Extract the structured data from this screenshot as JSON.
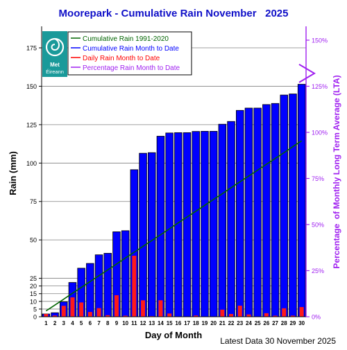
{
  "title": "Moorepark - Cumulative Rain November   2025",
  "footer": "Latest Data 30 November 2025",
  "logo": {
    "line1": "Met",
    "line2": "Éireann"
  },
  "colors": {
    "title": "#1010c8",
    "cumulative_bar": "#0000ff",
    "daily_bar": "#ff1a1a",
    "lta_line": "#006400",
    "percentage": "#a020f0",
    "grid": "#808080",
    "logo_bg": "#1a9a9a"
  },
  "chart_data": {
    "type": "bar",
    "xlabel": "Day of Month",
    "ylabel": "Rain (mm)",
    "y2label": "Percentage  of Monthly Long Term Average (LTA)",
    "ylim": [
      0,
      189
    ],
    "y2lim": [
      0,
      157.5
    ],
    "categories": [
      "1",
      "2",
      "3",
      "4",
      "5",
      "6",
      "7",
      "8",
      "9",
      "10",
      "11",
      "12",
      "13",
      "14",
      "15",
      "16",
      "17",
      "18",
      "19",
      "20",
      "21",
      "22",
      "23",
      "24",
      "25",
      "26",
      "27",
      "28",
      "29",
      "30"
    ],
    "yticks": [
      0,
      5,
      10,
      15,
      20,
      25,
      50,
      75,
      100,
      125,
      150,
      175
    ],
    "y2ticks": [
      "0%",
      "25%",
      "50%",
      "75%",
      "100%",
      "125%",
      "150%"
    ],
    "legend": [
      {
        "label": "Cumulative Rain 1991-2020",
        "color": "#006400"
      },
      {
        "label": "Cumulative Rain Month to Date",
        "color": "#0000ff"
      },
      {
        "label": "Daily Rain Month to Date",
        "color": "#ff0000"
      },
      {
        "label": "Percentage Rain Month to Date",
        "color": "#a020f0"
      }
    ],
    "series": [
      {
        "name": "Cumulative Rain Month to Date",
        "values": [
          1.8,
          2.6,
          9.7,
          22.3,
          31.6,
          34.7,
          40.3,
          41.3,
          55.3,
          56.0,
          95.7,
          106.4,
          106.8,
          117.5,
          119.6,
          119.8,
          119.8,
          120.6,
          120.7,
          120.7,
          125.3,
          127.1,
          134.3,
          135.8,
          135.8,
          138.1,
          138.8,
          144.3,
          145.0,
          151.3
        ]
      },
      {
        "name": "Daily Rain Month to Date",
        "values": [
          1.8,
          0.8,
          7.1,
          12.6,
          9.3,
          3.1,
          5.6,
          1.0,
          14.0,
          0.7,
          39.7,
          10.7,
          0.4,
          10.7,
          2.1,
          0.2,
          0.0,
          0.8,
          0.1,
          0.0,
          4.6,
          1.8,
          7.2,
          1.5,
          0.0,
          2.3,
          0.7,
          5.5,
          0.7,
          6.3
        ]
      },
      {
        "name": "Cumulative Rain 1991-2020",
        "values": [
          3.8,
          7.6,
          11.4,
          15.3,
          19.1,
          22.9,
          26.7,
          30.5,
          34.3,
          38.2,
          42.0,
          45.8,
          49.6,
          53.4,
          57.2,
          61.1,
          64.9,
          68.7,
          72.5,
          76.3,
          80.1,
          84.0,
          87.8,
          91.6,
          95.4,
          99.2,
          103.0,
          106.8,
          110.7,
          114.5
        ]
      }
    ],
    "percentage_to_date": 132
  }
}
